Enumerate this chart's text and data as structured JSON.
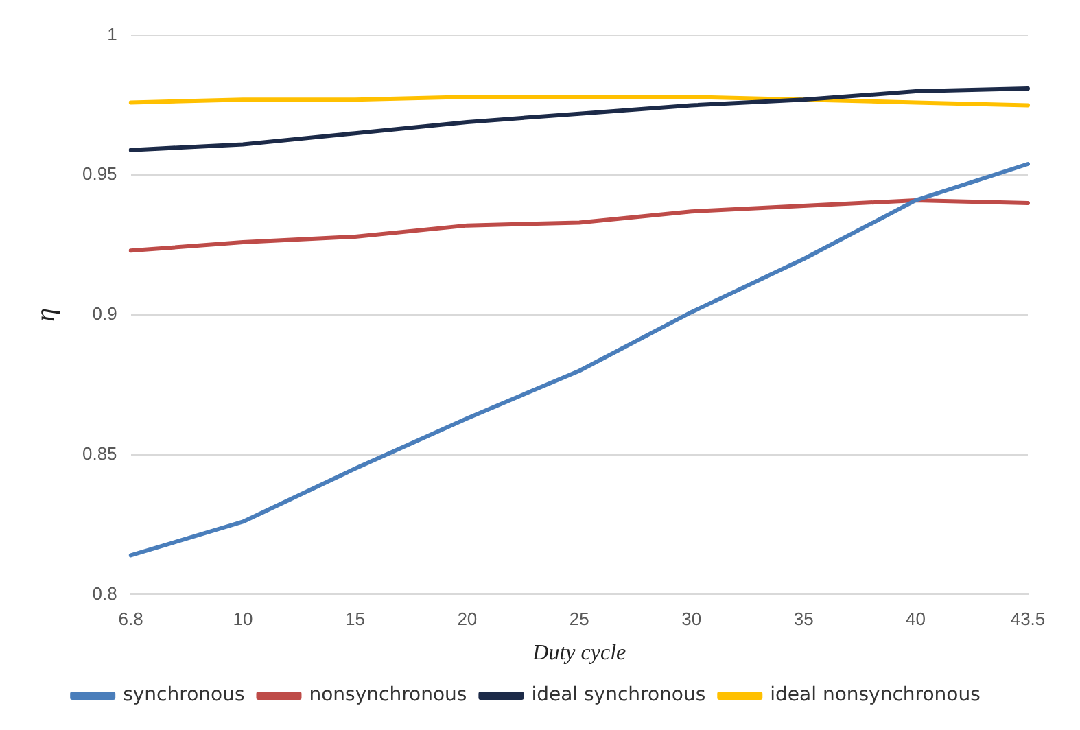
{
  "chart_data": {
    "type": "line",
    "xlabel": "Duty cycle",
    "ylabel": "η",
    "categories": [
      "6.8",
      "10",
      "15",
      "20",
      "25",
      "30",
      "35",
      "40",
      "43.5"
    ],
    "series": [
      {
        "name": "synchronous",
        "color": "#4a7ebb",
        "values": [
          0.814,
          0.826,
          0.845,
          0.863,
          0.88,
          0.901,
          0.92,
          0.941,
          0.954
        ]
      },
      {
        "name": "nonsynchronous",
        "color": "#be4b48",
        "values": [
          0.923,
          0.926,
          0.928,
          0.932,
          0.933,
          0.937,
          0.939,
          0.941,
          0.94
        ]
      },
      {
        "name": "ideal synchronous",
        "color": "#1c2a48",
        "values": [
          0.959,
          0.961,
          0.965,
          0.969,
          0.972,
          0.975,
          0.977,
          0.98,
          0.981
        ]
      },
      {
        "name": "ideal nonsynchronous",
        "color": "#ffc000",
        "values": [
          0.976,
          0.977,
          0.977,
          0.978,
          0.978,
          0.978,
          0.977,
          0.976,
          0.975
        ]
      }
    ],
    "ylim": [
      0.8,
      1
    ],
    "yticks": [
      0.8,
      0.85,
      0.9,
      0.95,
      1
    ],
    "grid": "y",
    "legend": "bottom",
    "marker": "none",
    "line_style": "solid"
  }
}
